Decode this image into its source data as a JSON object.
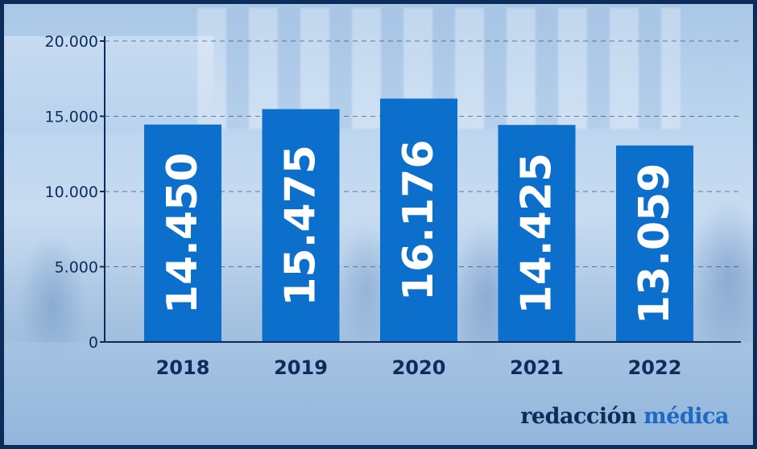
{
  "chart_data": {
    "type": "bar",
    "categories": [
      "2018",
      "2019",
      "2020",
      "2021",
      "2022"
    ],
    "values": [
      14450,
      15475,
      16176,
      14425,
      13059
    ],
    "value_labels": [
      "14.450",
      "15.475",
      "16.176",
      "14.425",
      "13.059"
    ],
    "ylim": [
      0,
      20000
    ],
    "yticks": [
      0,
      5000,
      10000,
      15000,
      20000
    ],
    "ytick_labels": [
      "0",
      "5.000",
      "10.000",
      "15.000",
      "20.000"
    ],
    "grid": true,
    "bar_color": "#0c6fcb",
    "axis_color": "#0c2d59"
  },
  "branding": {
    "word1": "redacción",
    "word2": "médica"
  }
}
